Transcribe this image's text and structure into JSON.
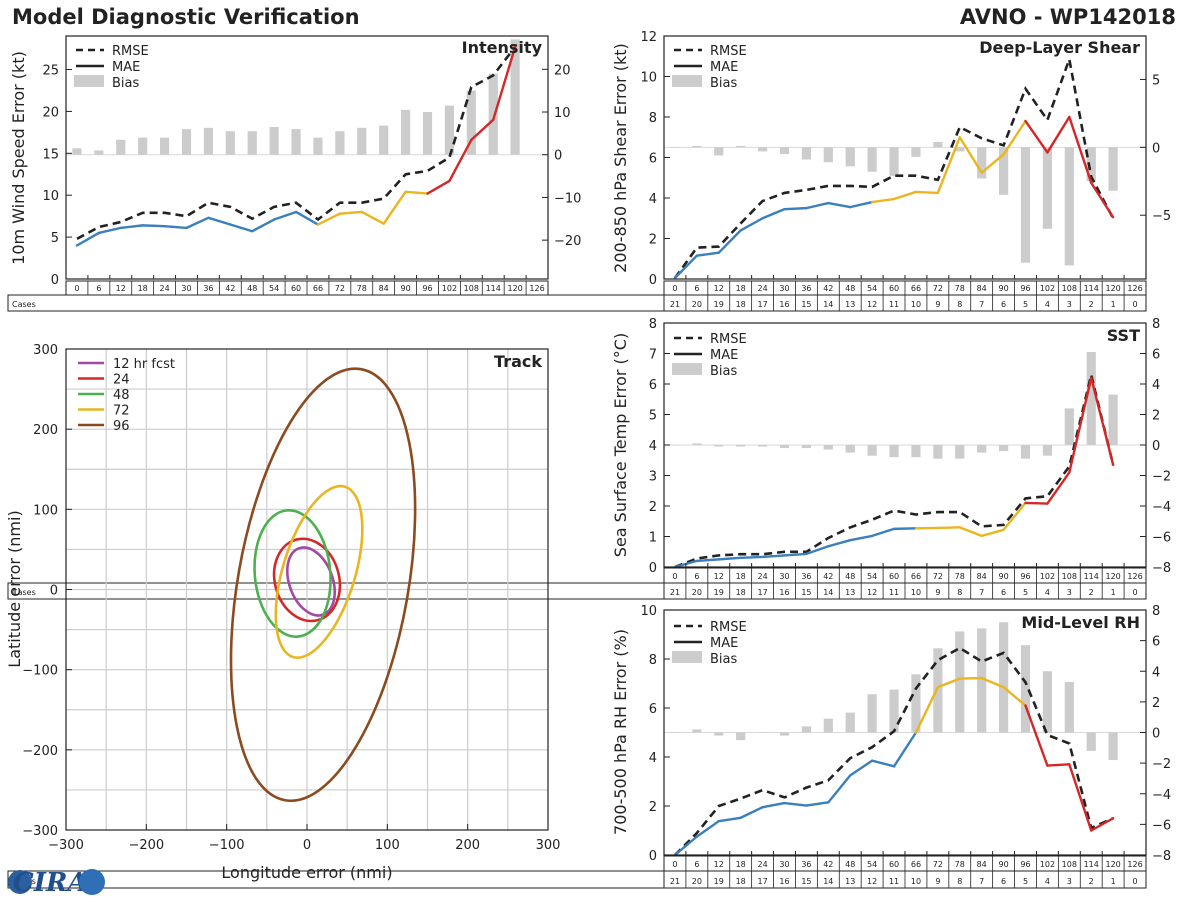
{
  "header": {
    "title": "Model Diagnostic Verification",
    "storm": "AVNO - WP142018"
  },
  "logo": {
    "text": "CIRA"
  },
  "colors": {
    "rmse": "#222222",
    "blue": "#3a7fbe",
    "yellow": "#e9b520",
    "red": "#d62728",
    "bias": "#cccccc",
    "grid": "#cccccc"
  },
  "leads": [
    "0",
    "6",
    "12",
    "18",
    "24",
    "30",
    "36",
    "42",
    "48",
    "54",
    "60",
    "66",
    "72",
    "78",
    "84",
    "90",
    "96",
    "102",
    "108",
    "114",
    "120",
    "126"
  ],
  "cases": [
    "21",
    "20",
    "19",
    "18",
    "17",
    "16",
    "15",
    "14",
    "13",
    "12",
    "11",
    "10",
    "9",
    "8",
    "7",
    "6",
    "5",
    "4",
    "3",
    "2",
    "1",
    "0"
  ],
  "cases_label": "Cases",
  "legend": {
    "rmse": "RMSE",
    "mae": "MAE",
    "bias": "Bias"
  },
  "chart_data": [
    {
      "type": "line",
      "id": "intensity",
      "title": "Intensity",
      "ylabel": "10m Wind Speed Error (kt)",
      "ylim": [
        0,
        29
      ],
      "yticks": [
        0,
        5,
        10,
        15,
        20,
        25
      ],
      "y2lim": [
        -29.1,
        27.8
      ],
      "y2ticks": [
        -20,
        -10,
        0,
        10,
        20
      ],
      "rmse": [
        4.8,
        6.2,
        6.8,
        7.9,
        7.9,
        7.5,
        9.1,
        8.6,
        7.2,
        8.6,
        9.1,
        7.1,
        9.1,
        9.1,
        9.6,
        12.5,
        12.9,
        14.5,
        22.9,
        24.3,
        27.7,
        null
      ],
      "mae": [
        4.0,
        5.5,
        6.1,
        6.4,
        6.3,
        6.1,
        7.3,
        6.5,
        5.7,
        7.1,
        8.0,
        6.5,
        7.8,
        8.0,
        6.6,
        10.4,
        10.2,
        11.7,
        16.6,
        19.0,
        27.7,
        null
      ],
      "bias": [
        1.5,
        1.0,
        3.5,
        4.0,
        4.0,
        6.0,
        6.3,
        5.5,
        5.5,
        6.5,
        6.0,
        4.0,
        5.5,
        6.3,
        6.8,
        10.5,
        10.0,
        11.5,
        15.0,
        19.0,
        27.0,
        null
      ],
      "colors": [
        "blue",
        "blue",
        "blue",
        "blue",
        "blue",
        "blue",
        "blue",
        "blue",
        "blue",
        "blue",
        "blue",
        "blue",
        "yellow",
        "yellow",
        "yellow",
        "yellow",
        "yellow",
        "red",
        "red",
        "red",
        "red"
      ]
    },
    {
      "type": "line",
      "id": "shear",
      "title": "Deep-Layer Shear",
      "ylabel": "200-850 hPa Shear Error (kt)",
      "ylim": [
        0,
        12
      ],
      "yticks": [
        0,
        2,
        4,
        6,
        8,
        10,
        12
      ],
      "y2lim": [
        -9.7,
        8.2
      ],
      "y2ticks": [
        -5,
        0,
        5
      ],
      "rmse": [
        0.05,
        1.55,
        1.6,
        2.75,
        3.85,
        4.25,
        4.4,
        4.6,
        4.6,
        4.55,
        5.1,
        5.1,
        4.9,
        7.5,
        6.95,
        6.6,
        9.4,
        7.85,
        10.85,
        5.05,
        3.0,
        null
      ],
      "mae": [
        0.05,
        1.15,
        1.3,
        2.4,
        3.0,
        3.45,
        3.5,
        3.75,
        3.55,
        3.8,
        3.95,
        4.3,
        4.25,
        7.0,
        5.25,
        6.15,
        7.8,
        6.25,
        8.0,
        4.75,
        3.05,
        null
      ],
      "bias": [
        0.0,
        0.1,
        -0.6,
        0.1,
        -0.3,
        -0.5,
        -0.9,
        -1.1,
        -1.4,
        -1.8,
        -2.1,
        -0.7,
        0.4,
        -0.3,
        -2.3,
        -3.5,
        -8.5,
        -6.0,
        -8.7,
        -2.5,
        -3.2,
        null
      ],
      "colors": [
        "blue",
        "blue",
        "blue",
        "blue",
        "blue",
        "blue",
        "blue",
        "blue",
        "blue",
        "blue",
        "yellow",
        "yellow",
        "yellow",
        "yellow",
        "yellow",
        "yellow",
        "yellow",
        "red",
        "red",
        "red",
        "red"
      ]
    },
    {
      "type": "line",
      "id": "sst",
      "title": "SST",
      "ylabel": "Sea Surface Temp Error (°C)",
      "ylim": [
        0,
        8
      ],
      "yticks": [
        0,
        1,
        2,
        3,
        4,
        5,
        6,
        7,
        8
      ],
      "y2lim": [
        -8,
        8
      ],
      "y2ticks": [
        -8,
        -6,
        -4,
        -2,
        0,
        2,
        4,
        6,
        8
      ],
      "rmse": [
        0.0,
        0.28,
        0.38,
        0.42,
        0.42,
        0.5,
        0.5,
        0.95,
        1.3,
        1.55,
        1.85,
        1.72,
        1.8,
        1.8,
        1.33,
        1.38,
        2.25,
        2.32,
        3.3,
        6.3,
        3.35,
        null
      ],
      "mae": [
        0.0,
        0.2,
        0.25,
        0.3,
        0.33,
        0.38,
        0.43,
        0.68,
        0.88,
        1.02,
        1.25,
        1.27,
        1.28,
        1.3,
        1.02,
        1.22,
        2.1,
        2.08,
        3.1,
        6.2,
        3.35,
        null
      ],
      "bias": [
        0.0,
        0.1,
        -0.1,
        -0.1,
        -0.1,
        -0.2,
        -0.2,
        -0.3,
        -0.5,
        -0.7,
        -0.8,
        -0.8,
        -0.9,
        -0.9,
        -0.5,
        -0.4,
        -0.9,
        -0.7,
        2.4,
        6.1,
        3.3,
        null
      ],
      "colors": [
        "blue",
        "blue",
        "blue",
        "blue",
        "blue",
        "blue",
        "blue",
        "blue",
        "blue",
        "blue",
        "blue",
        "blue",
        "yellow",
        "yellow",
        "yellow",
        "yellow",
        "yellow",
        "red",
        "red",
        "red",
        "red"
      ]
    },
    {
      "type": "line",
      "id": "rh",
      "title": "Mid-Level RH",
      "ylabel": "700-500 hPa RH Error (%)",
      "ylim": [
        0,
        10
      ],
      "yticks": [
        0,
        2,
        4,
        6,
        8,
        10
      ],
      "y2lim": [
        -8,
        8
      ],
      "y2ticks": [
        -8,
        -6,
        -4,
        -2,
        0,
        2,
        4,
        6,
        8
      ],
      "rmse": [
        0.0,
        0.9,
        2.0,
        2.3,
        2.65,
        2.35,
        2.75,
        3.05,
        3.95,
        4.4,
        5.05,
        6.8,
        7.95,
        8.45,
        7.9,
        8.25,
        7.05,
        4.9,
        4.55,
        1.1,
        1.5,
        null
      ],
      "mae": [
        0.0,
        0.75,
        1.38,
        1.52,
        1.95,
        2.12,
        2.02,
        2.15,
        3.25,
        3.85,
        3.62,
        5.0,
        6.85,
        7.2,
        7.22,
        6.85,
        6.1,
        3.65,
        3.7,
        1.0,
        1.5,
        null
      ],
      "bias": [
        0.0,
        0.2,
        -0.2,
        -0.5,
        0.0,
        -0.2,
        0.4,
        0.9,
        1.3,
        2.5,
        2.8,
        3.8,
        5.5,
        6.6,
        6.8,
        7.2,
        5.7,
        4.0,
        3.3,
        -1.2,
        -1.8,
        null
      ],
      "colors": [
        "blue",
        "blue",
        "blue",
        "blue",
        "blue",
        "blue",
        "blue",
        "blue",
        "blue",
        "blue",
        "blue",
        "blue",
        "yellow",
        "yellow",
        "yellow",
        "yellow",
        "yellow",
        "red",
        "red",
        "red",
        "red"
      ]
    },
    {
      "type": "scatter",
      "id": "track",
      "title": "Track",
      "xlabel": "Longitude error (nmi)",
      "ylabel": "Latitude error (nmi)",
      "xlim": [
        -300,
        300
      ],
      "ylim": [
        -300,
        300
      ],
      "xticks": [
        -300,
        -200,
        -100,
        0,
        100,
        200,
        300
      ],
      "yticks": [
        -300,
        -200,
        -100,
        0,
        100,
        200,
        300
      ],
      "ellipses": [
        {
          "label": "12 hr fcst",
          "color": "#a349a4",
          "cx": 5,
          "cy": 10,
          "rx": 27,
          "ry": 44,
          "angle": -20
        },
        {
          "label": "24",
          "color": "#d62728",
          "cx": 0,
          "cy": 12,
          "rx": 40,
          "ry": 52,
          "angle": -15
        },
        {
          "label": "48",
          "color": "#4caf50",
          "cx": -18,
          "cy": 20,
          "rx": 47,
          "ry": 79,
          "angle": -5
        },
        {
          "label": "72",
          "color": "#e9b520",
          "cx": 15,
          "cy": 22,
          "rx": 45,
          "ry": 111,
          "angle": 17
        },
        {
          "label": "96",
          "color": "#8b4a1f",
          "cx": 20,
          "cy": 6,
          "rx": 106,
          "ry": 273,
          "angle": 10
        }
      ]
    }
  ]
}
